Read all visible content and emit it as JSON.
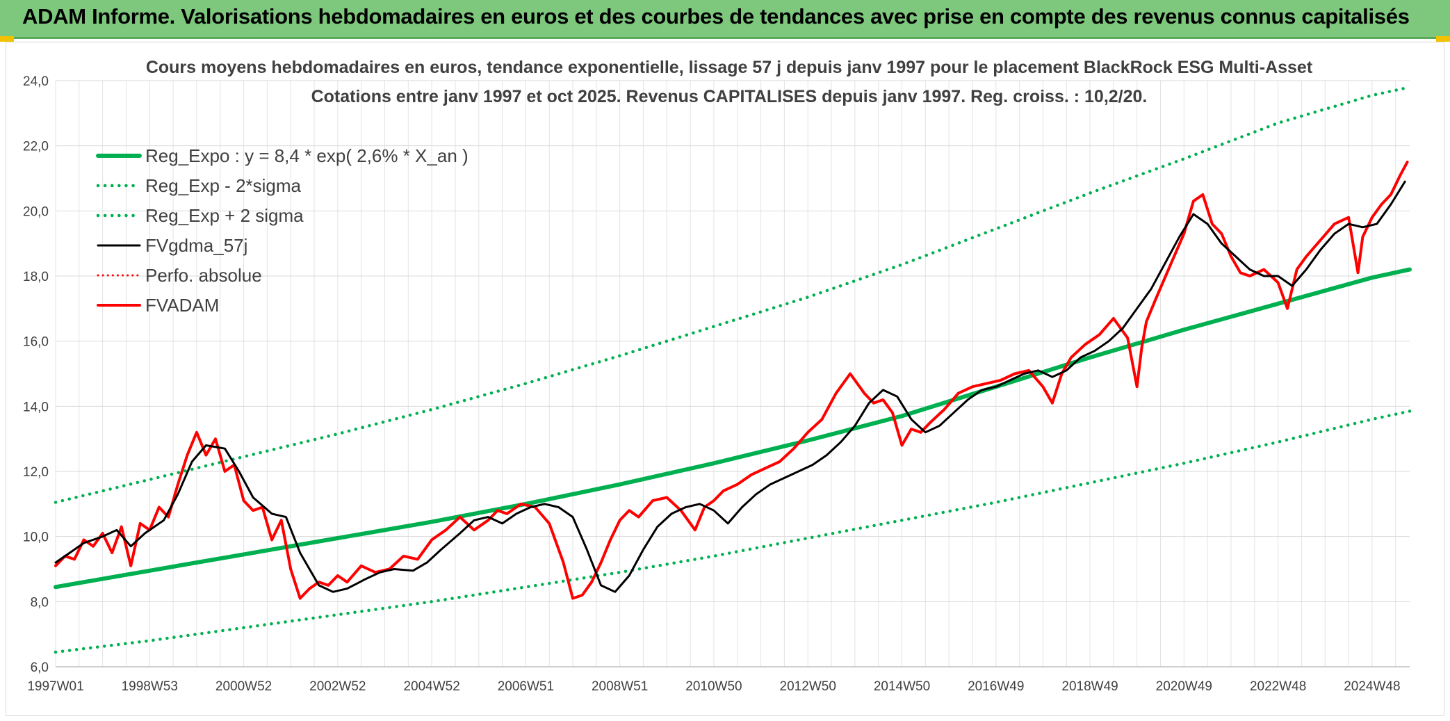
{
  "banner": {
    "title": "ADAM Informe. Valorisations hebdomadaires en euros et des courbes de tendances avec prise en compte des revenus connus capitalisés"
  },
  "chart_data": {
    "type": "line",
    "title": "Cours moyens hebdomadaires en euros, tendance exponentielle, lissage 57 j depuis janv 1997 pour le placement BlackRock ESG Multi-Asset",
    "subtitle": "Cotations entre janv 1997 et oct 2025. Revenus CAPITALISES depuis janv 1997. Reg. croiss. : 10,2/20.",
    "xlabel": "",
    "ylabel": "",
    "x_range": [
      1997.0,
      2025.8
    ],
    "ylim": [
      6,
      24
    ],
    "y_ticks": [
      6,
      8,
      10,
      12,
      14,
      16,
      18,
      20,
      22,
      24
    ],
    "y_tick_labels": [
      "6,0",
      "8,0",
      "10,0",
      "12,0",
      "14,0",
      "16,0",
      "18,0",
      "20,0",
      "22,0",
      "24,0"
    ],
    "x_ticks": [
      1997.0,
      1999.0,
      2001.0,
      2003.0,
      2005.0,
      2007.0,
      2009.0,
      2011.0,
      2013.0,
      2015.0,
      2017.0,
      2019.0,
      2021.0,
      2023.0,
      2025.0
    ],
    "x_tick_labels": [
      "1997W01",
      "1998W53",
      "2000W52",
      "2002W52",
      "2004W52",
      "2006W51",
      "2008W51",
      "2010W50",
      "2012W50",
      "2014W50",
      "2016W49",
      "2018W49",
      "2020W49",
      "2022W48",
      "2024W48"
    ],
    "grid": true,
    "legend_position": "top-left",
    "colors": {
      "regression": "#00b050",
      "bands": "#00b050",
      "smoothed": "#000000",
      "absolute": "#ff0000",
      "price": "#ff0000"
    },
    "series": [
      {
        "name": "Reg_Expo : y = 8,4 * exp( 2,6% *  X_an )",
        "style": "solid-thick",
        "x": [
          1997.0,
          1999.0,
          2001.0,
          2003.0,
          2005.0,
          2007.0,
          2009.0,
          2011.0,
          2013.0,
          2015.0,
          2017.0,
          2019.0,
          2021.0,
          2023.0,
          2025.0,
          2025.8
        ],
        "y": [
          8.45,
          8.95,
          9.45,
          9.95,
          10.45,
          11.0,
          11.6,
          12.25,
          12.95,
          13.7,
          14.6,
          15.5,
          16.35,
          17.15,
          17.95,
          18.2
        ]
      },
      {
        "name": "Reg_Exp - 2*sigma",
        "style": "dotted",
        "x": [
          1997.0,
          1999.0,
          2001.0,
          2003.0,
          2005.0,
          2007.0,
          2009.0,
          2011.0,
          2013.0,
          2015.0,
          2017.0,
          2019.0,
          2021.0,
          2023.0,
          2025.0,
          2025.8
        ],
        "y": [
          6.45,
          6.8,
          7.2,
          7.6,
          8.0,
          8.45,
          8.9,
          9.4,
          9.95,
          10.5,
          11.05,
          11.65,
          12.25,
          12.9,
          13.6,
          13.85
        ]
      },
      {
        "name": "Reg_Exp + 2 sigma",
        "style": "dotted",
        "x": [
          1997.0,
          1999.0,
          2001.0,
          2003.0,
          2005.0,
          2007.0,
          2009.0,
          2011.0,
          2013.0,
          2015.0,
          2017.0,
          2019.0,
          2021.0,
          2023.0,
          2025.0,
          2025.8
        ],
        "y": [
          11.05,
          11.75,
          12.45,
          13.15,
          13.9,
          14.7,
          15.55,
          16.45,
          17.35,
          18.35,
          19.45,
          20.55,
          21.6,
          22.7,
          23.55,
          23.8
        ]
      },
      {
        "name": "FVgdma_57j",
        "style": "solid",
        "x": [
          1997.0,
          1997.3,
          1997.6,
          1998.0,
          1998.3,
          1998.6,
          1998.9,
          1999.3,
          1999.6,
          1999.9,
          2000.2,
          2000.6,
          2000.9,
          2001.2,
          2001.6,
          2001.9,
          2002.2,
          2002.6,
          2002.9,
          2003.2,
          2003.6,
          2003.9,
          2004.2,
          2004.6,
          2004.9,
          2005.2,
          2005.6,
          2005.9,
          2006.2,
          2006.5,
          2006.8,
          2007.1,
          2007.4,
          2007.7,
          2008.0,
          2008.3,
          2008.6,
          2008.9,
          2009.2,
          2009.5,
          2009.8,
          2010.1,
          2010.4,
          2010.7,
          2011.0,
          2011.3,
          2011.6,
          2011.9,
          2012.2,
          2012.5,
          2012.8,
          2013.1,
          2013.4,
          2013.7,
          2014.0,
          2014.3,
          2014.6,
          2014.9,
          2015.2,
          2015.5,
          2015.8,
          2016.1,
          2016.4,
          2016.7,
          2017.0,
          2017.3,
          2017.6,
          2017.9,
          2018.2,
          2018.5,
          2018.8,
          2019.1,
          2019.4,
          2019.7,
          2020.0,
          2020.3,
          2020.6,
          2020.9,
          2021.2,
          2021.5,
          2021.8,
          2022.1,
          2022.4,
          2022.7,
          2023.0,
          2023.3,
          2023.6,
          2023.9,
          2024.2,
          2024.5,
          2024.8,
          2025.1,
          2025.4,
          2025.7
        ],
        "y": [
          9.2,
          9.5,
          9.8,
          10.0,
          10.2,
          9.7,
          10.1,
          10.5,
          11.3,
          12.3,
          12.8,
          12.7,
          12.0,
          11.2,
          10.7,
          10.6,
          9.5,
          8.5,
          8.3,
          8.4,
          8.7,
          8.9,
          9.0,
          8.95,
          9.2,
          9.6,
          10.1,
          10.5,
          10.6,
          10.4,
          10.7,
          10.9,
          11.0,
          10.9,
          10.6,
          9.6,
          8.5,
          8.3,
          8.8,
          9.6,
          10.3,
          10.7,
          10.9,
          11.0,
          10.8,
          10.4,
          10.9,
          11.3,
          11.6,
          11.8,
          12.0,
          12.2,
          12.5,
          12.9,
          13.4,
          14.1,
          14.5,
          14.3,
          13.6,
          13.2,
          13.4,
          13.8,
          14.2,
          14.5,
          14.6,
          14.8,
          15.0,
          15.1,
          14.9,
          15.1,
          15.5,
          15.7,
          16.0,
          16.4,
          17.0,
          17.6,
          18.4,
          19.2,
          19.9,
          19.6,
          19.0,
          18.6,
          18.2,
          18.0,
          18.0,
          17.7,
          18.2,
          18.8,
          19.3,
          19.6,
          19.5,
          19.6,
          20.2,
          20.9
        ]
      },
      {
        "name": "Perfo. absolue",
        "style": "dotted",
        "x": [],
        "y": []
      },
      {
        "name": "FVADAM",
        "style": "solid-thick",
        "x": [
          1997.0,
          1997.2,
          1997.4,
          1997.6,
          1997.8,
          1998.0,
          1998.2,
          1998.4,
          1998.6,
          1998.8,
          1999.0,
          1999.2,
          1999.4,
          1999.6,
          1999.8,
          2000.0,
          2000.2,
          2000.4,
          2000.6,
          2000.8,
          2001.0,
          2001.2,
          2001.4,
          2001.6,
          2001.8,
          2002.0,
          2002.2,
          2002.4,
          2002.6,
          2002.8,
          2003.0,
          2003.2,
          2003.5,
          2003.8,
          2004.1,
          2004.4,
          2004.7,
          2005.0,
          2005.3,
          2005.6,
          2005.9,
          2006.2,
          2006.4,
          2006.6,
          2006.9,
          2007.2,
          2007.5,
          2007.8,
          2008.0,
          2008.2,
          2008.4,
          2008.6,
          2008.8,
          2009.0,
          2009.2,
          2009.4,
          2009.7,
          2010.0,
          2010.3,
          2010.6,
          2010.8,
          2011.0,
          2011.2,
          2011.5,
          2011.8,
          2012.1,
          2012.4,
          2012.7,
          2013.0,
          2013.3,
          2013.6,
          2013.9,
          2014.2,
          2014.4,
          2014.6,
          2014.8,
          2015.0,
          2015.2,
          2015.4,
          2015.6,
          2015.9,
          2016.2,
          2016.5,
          2016.8,
          2017.1,
          2017.4,
          2017.7,
          2018.0,
          2018.2,
          2018.4,
          2018.6,
          2018.9,
          2019.2,
          2019.5,
          2019.8,
          2020.0,
          2020.1,
          2020.2,
          2020.4,
          2020.7,
          2021.0,
          2021.2,
          2021.4,
          2021.6,
          2021.8,
          2022.0,
          2022.2,
          2022.4,
          2022.7,
          2023.0,
          2023.2,
          2023.4,
          2023.6,
          2023.9,
          2024.2,
          2024.5,
          2024.7,
          2024.8,
          2024.9,
          2025.0,
          2025.2,
          2025.4,
          2025.6,
          2025.75
        ],
        "y": [
          9.1,
          9.4,
          9.3,
          9.9,
          9.7,
          10.1,
          9.5,
          10.3,
          9.1,
          10.4,
          10.2,
          10.9,
          10.6,
          11.6,
          12.5,
          13.2,
          12.5,
          13.0,
          12.0,
          12.2,
          11.1,
          10.8,
          10.9,
          9.9,
          10.5,
          9.0,
          8.1,
          8.4,
          8.6,
          8.5,
          8.8,
          8.6,
          9.1,
          8.9,
          9.0,
          9.4,
          9.3,
          9.9,
          10.2,
          10.6,
          10.2,
          10.5,
          10.8,
          10.7,
          11.0,
          10.9,
          10.4,
          9.2,
          8.1,
          8.2,
          8.6,
          9.2,
          9.9,
          10.5,
          10.8,
          10.6,
          11.1,
          11.2,
          10.8,
          10.2,
          10.9,
          11.1,
          11.4,
          11.6,
          11.9,
          12.1,
          12.3,
          12.7,
          13.2,
          13.6,
          14.4,
          15.0,
          14.4,
          14.1,
          14.2,
          13.8,
          12.8,
          13.3,
          13.2,
          13.5,
          13.9,
          14.4,
          14.6,
          14.7,
          14.8,
          15.0,
          15.1,
          14.6,
          14.1,
          15.0,
          15.5,
          15.9,
          16.2,
          16.7,
          16.1,
          14.6,
          15.8,
          16.6,
          17.3,
          18.3,
          19.3,
          20.3,
          20.5,
          19.6,
          19.3,
          18.6,
          18.1,
          18.0,
          18.2,
          17.8,
          17.0,
          18.2,
          18.6,
          19.1,
          19.6,
          19.8,
          18.1,
          19.2,
          19.5,
          19.8,
          20.2,
          20.5,
          21.1,
          21.5
        ]
      }
    ]
  }
}
